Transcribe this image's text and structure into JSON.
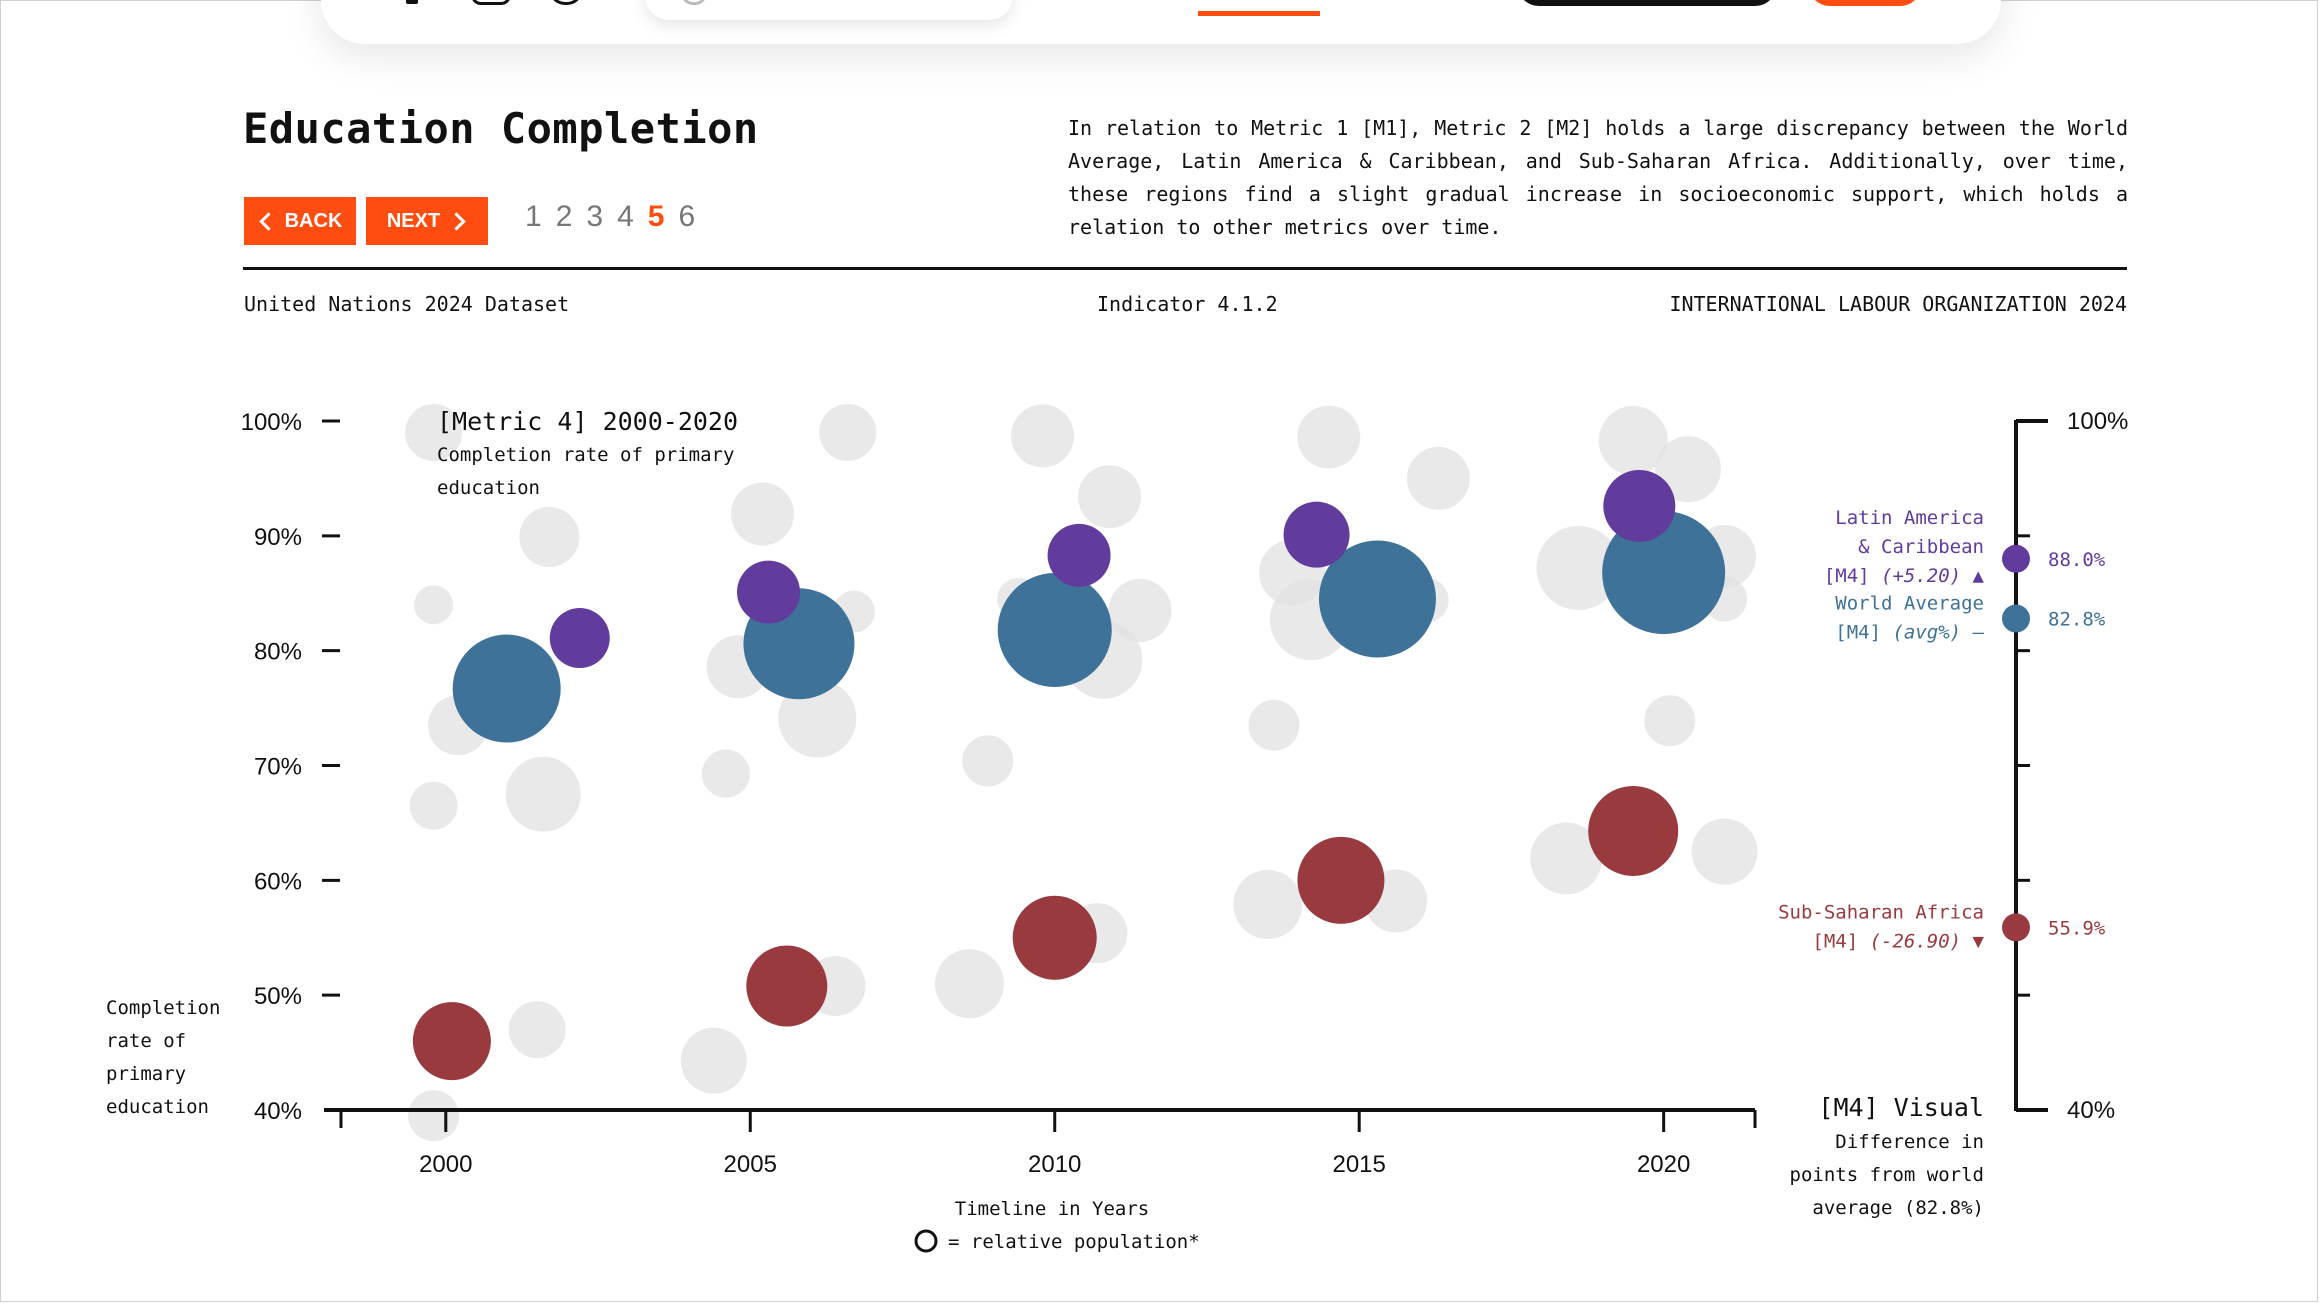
{
  "page": {
    "title": "Education Completion",
    "back_label": "BACK",
    "next_label": "NEXT",
    "pages": [
      "1",
      "2",
      "3",
      "4",
      "5",
      "6"
    ],
    "active_page": "5",
    "description": "In relation to Metric 1 [M1], Metric 2 [M2] holds a large discrepancy between the World Average, Latin America & Caribbean, and Sub-Saharan Africa. Additionally, over time, these regions find a slight gradual increase in socioeconomic support, which holds a relation to other metrics over time.",
    "source_left": "United Nations 2024 Dataset",
    "source_center": "Indicator 4.1.2",
    "source_right": "INTERNATIONAL LABOUR ORGANIZATION 2024",
    "accent_color": "#ff4d12"
  },
  "chart_data": {
    "type": "scatter",
    "title": "[Metric 4] 2000-2020",
    "subtitle_lines": [
      "Completion rate of primary",
      "education"
    ],
    "xlabel": "Timeline in Years",
    "ylabel_lines": [
      "Completion",
      "rate of",
      "primary",
      "education"
    ],
    "size_legend": "= relative population*",
    "x_ticks": [
      2000,
      2005,
      2010,
      2015,
      2020
    ],
    "y_ticks": [
      "40%",
      "50%",
      "60%",
      "70%",
      "80%",
      "90%",
      "100%"
    ],
    "ylim": [
      40,
      100
    ],
    "xlim": [
      1998,
      2021.5
    ],
    "series": [
      {
        "name": "World Average",
        "color": "#3e7298",
        "points": [
          {
            "x": 2001,
            "y": 76.7,
            "size": 36
          },
          {
            "x": 2005.8,
            "y": 80.6,
            "size": 37
          },
          {
            "x": 2010,
            "y": 81.8,
            "size": 38
          },
          {
            "x": 2015.3,
            "y": 84.5,
            "size": 39
          },
          {
            "x": 2020,
            "y": 86.8,
            "size": 41
          }
        ]
      },
      {
        "name": "Latin America & Caribbean",
        "color": "#613c9c",
        "points": [
          {
            "x": 2002.2,
            "y": 81.1,
            "size": 20
          },
          {
            "x": 2005.3,
            "y": 85.1,
            "size": 21
          },
          {
            "x": 2010.4,
            "y": 88.3,
            "size": 21
          },
          {
            "x": 2014.3,
            "y": 90.1,
            "size": 22
          },
          {
            "x": 2019.6,
            "y": 92.6,
            "size": 24
          }
        ]
      },
      {
        "name": "Sub-Saharan Africa",
        "color": "#983a3e",
        "points": [
          {
            "x": 2000.1,
            "y": 46.0,
            "size": 26
          },
          {
            "x": 2005.6,
            "y": 50.8,
            "size": 27
          },
          {
            "x": 2010,
            "y": 55.0,
            "size": 28
          },
          {
            "x": 2014.7,
            "y": 60.0,
            "size": 29
          },
          {
            "x": 2019.5,
            "y": 64.3,
            "size": 30
          }
        ]
      }
    ],
    "background_bubbles": [
      {
        "x": 1999.8,
        "y": 99.0,
        "size": 19
      },
      {
        "x": 2001.7,
        "y": 89.9,
        "size": 20
      },
      {
        "x": 1999.8,
        "y": 84.0,
        "size": 13
      },
      {
        "x": 2000.2,
        "y": 73.5,
        "size": 20
      },
      {
        "x": 1999.8,
        "y": 66.5,
        "size": 16
      },
      {
        "x": 2001.6,
        "y": 67.5,
        "size": 25
      },
      {
        "x": 2001.5,
        "y": 47.0,
        "size": 19
      },
      {
        "x": 1999.8,
        "y": 39.5,
        "size": 17
      },
      {
        "x": 2006.6,
        "y": 99.0,
        "size": 19
      },
      {
        "x": 2005.2,
        "y": 91.9,
        "size": 21
      },
      {
        "x": 2006.7,
        "y": 83.4,
        "size": 14
      },
      {
        "x": 2004.8,
        "y": 78.6,
        "size": 21
      },
      {
        "x": 2006.1,
        "y": 74.1,
        "size": 26
      },
      {
        "x": 2004.6,
        "y": 69.3,
        "size": 16
      },
      {
        "x": 2006.4,
        "y": 50.8,
        "size": 20
      },
      {
        "x": 2004.4,
        "y": 44.3,
        "size": 22
      },
      {
        "x": 2009.8,
        "y": 98.7,
        "size": 21
      },
      {
        "x": 2010.9,
        "y": 93.4,
        "size": 21
      },
      {
        "x": 2009.4,
        "y": 84.5,
        "size": 14
      },
      {
        "x": 2011.4,
        "y": 83.5,
        "size": 21
      },
      {
        "x": 2010.8,
        "y": 79.2,
        "size": 26
      },
      {
        "x": 2008.9,
        "y": 70.4,
        "size": 17
      },
      {
        "x": 2010.7,
        "y": 55.4,
        "size": 20
      },
      {
        "x": 2008.6,
        "y": 51.0,
        "size": 23
      },
      {
        "x": 2014.5,
        "y": 98.6,
        "size": 21
      },
      {
        "x": 2016.3,
        "y": 95.0,
        "size": 21
      },
      {
        "x": 2013.9,
        "y": 86.8,
        "size": 22
      },
      {
        "x": 2014.2,
        "y": 82.7,
        "size": 27
      },
      {
        "x": 2016.1,
        "y": 84.4,
        "size": 15
      },
      {
        "x": 2013.6,
        "y": 73.5,
        "size": 17
      },
      {
        "x": 2013.5,
        "y": 57.9,
        "size": 23
      },
      {
        "x": 2015.6,
        "y": 58.2,
        "size": 21
      },
      {
        "x": 2019.5,
        "y": 98.3,
        "size": 23
      },
      {
        "x": 2020.4,
        "y": 95.8,
        "size": 22
      },
      {
        "x": 2018.6,
        "y": 87.2,
        "size": 28
      },
      {
        "x": 2021.0,
        "y": 88.2,
        "size": 21
      },
      {
        "x": 2021.0,
        "y": 84.5,
        "size": 15
      },
      {
        "x": 2020.1,
        "y": 73.9,
        "size": 17
      },
      {
        "x": 2018.4,
        "y": 61.9,
        "size": 24
      },
      {
        "x": 2021.0,
        "y": 62.5,
        "size": 22
      }
    ],
    "right_axis": {
      "title": "[M4] Visual",
      "caption_lines": [
        "Difference in",
        "points from world",
        "average (82.8%)"
      ],
      "top_label": "100%",
      "bottom_label": "40%",
      "range": [
        40,
        100
      ],
      "markers": [
        {
          "name": "Latin America & Caribbean",
          "label_lines": [
            "Latin America",
            "& Caribbean"
          ],
          "tag": "[M4]",
          "diff": "(+5.20)",
          "arrow": "▲",
          "value": 88.0,
          "value_label": "88.0%",
          "color": "#613c9c"
        },
        {
          "name": "World Average",
          "label_lines": [
            "World Average"
          ],
          "tag": "[M4]",
          "diff": "(avg%)",
          "arrow": "–",
          "value": 82.8,
          "value_label": "82.8%",
          "color": "#3e7298"
        },
        {
          "name": "Sub-Saharan Africa",
          "label_lines": [
            "Sub-Saharan Africa"
          ],
          "tag": "[M4]",
          "diff": "(-26.90)",
          "arrow": "▼",
          "value": 55.9,
          "value_label": "55.9%",
          "color": "#983a3e"
        }
      ]
    },
    "grid": false
  }
}
